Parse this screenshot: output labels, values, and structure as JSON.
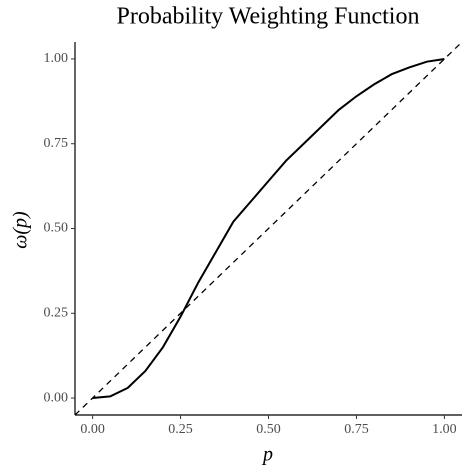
{
  "chart_data": {
    "type": "line",
    "title": "Probability Weighting Function",
    "x_label": "p",
    "y_label": "ω(p)",
    "xlim": [
      -0.05,
      1.05
    ],
    "ylim": [
      -0.05,
      1.05
    ],
    "xticks": [
      {
        "value": 0,
        "label": "0.00"
      },
      {
        "value": 0.25,
        "label": "0.25"
      },
      {
        "value": 0.5,
        "label": "0.50"
      },
      {
        "value": 0.75,
        "label": "0.75"
      },
      {
        "value": 1,
        "label": "1.00"
      }
    ],
    "yticks": [
      {
        "value": 0,
        "label": "0.00"
      },
      {
        "value": 0.25,
        "label": "0.25"
      },
      {
        "value": 0.5,
        "label": "0.50"
      },
      {
        "value": 0.75,
        "label": "0.75"
      },
      {
        "value": 1,
        "label": "1.00"
      }
    ],
    "grid": false,
    "series": [
      {
        "color": "#000000",
        "dashed": false,
        "x": [
          0,
          0.05,
          0.1,
          0.15,
          0.2,
          0.25,
          0.3,
          0.35,
          0.4,
          0.45,
          0.5,
          0.55,
          0.6,
          0.65,
          0.7,
          0.75,
          0.8,
          0.85,
          0.9,
          0.95,
          1
        ],
        "values": [
          0,
          0.005,
          0.03,
          0.08,
          0.15,
          0.24,
          0.34,
          0.43,
          0.52,
          0.58,
          0.64,
          0.7,
          0.75,
          0.8,
          0.85,
          0.89,
          0.925,
          0.955,
          0.975,
          0.992,
          1
        ]
      },
      {
        "color": "#000000",
        "dashed": true,
        "x": [
          -0.05,
          1.05
        ],
        "values": [
          -0.05,
          1.05
        ]
      }
    ]
  }
}
